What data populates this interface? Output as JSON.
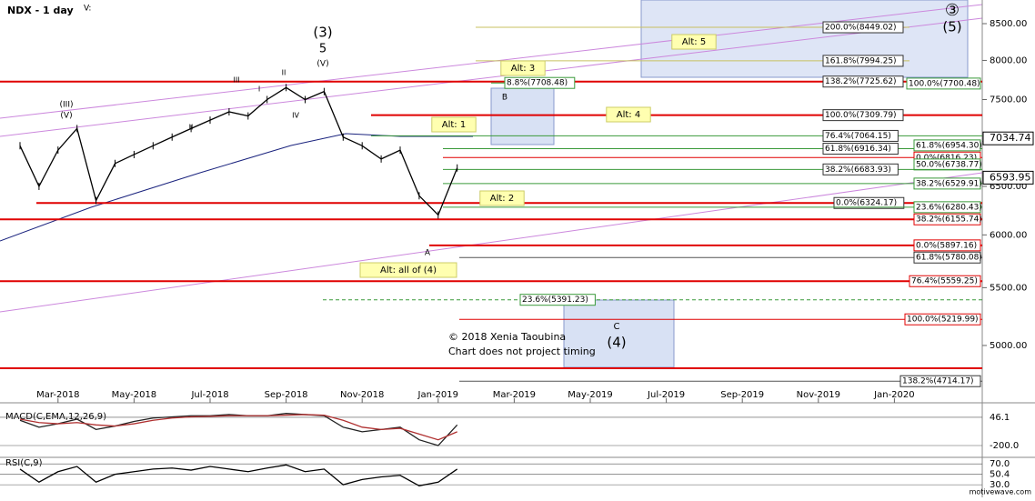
{
  "chart_data": {
    "type": "line",
    "title": "NDX - 1 day",
    "subtitle": "V:",
    "log_scale": true,
    "categories": [
      null,
      null,
      "Mar-2018",
      null,
      null,
      null,
      "May-2018",
      null,
      null,
      null,
      "Jul-2018",
      null,
      null,
      null,
      "Sep-2018",
      null,
      null,
      null,
      "Nov-2018",
      null,
      null,
      null,
      "Jan-2019",
      null,
      null,
      null,
      "Mar-2019",
      null,
      null,
      null,
      "May-2019",
      null,
      null,
      null,
      "Jul-2019",
      null,
      null,
      null,
      "Sep-2019",
      null,
      null,
      null,
      "Nov-2019",
      null,
      null,
      null,
      "Jan-2020",
      null,
      null,
      null
    ],
    "series": [
      {
        "name": "NDX",
        "color": "#000000",
        "values": [
          6950,
          6500,
          6900,
          7150,
          6350,
          6750,
          6850,
          6950,
          7050,
          7150,
          7250,
          7350,
          7300,
          7500,
          7650,
          7500,
          7600,
          7050,
          6950,
          6800,
          6900,
          6400,
          6200,
          6700,
          null,
          null,
          null,
          null,
          null,
          null,
          null,
          null,
          null,
          null,
          null,
          null,
          null,
          null,
          null,
          null,
          null,
          null,
          null,
          null,
          null,
          null,
          null,
          null,
          null,
          null
        ]
      }
    ],
    "ylim": [
      4549,
      8838
    ],
    "yticks": [
      {
        "value": 5000,
        "label": "5000.00"
      },
      {
        "value": 5500,
        "label": "5500.00"
      },
      {
        "value": 6000,
        "label": "6000.00"
      },
      {
        "value": 6500,
        "label": "6500.00"
      },
      {
        "value": 7000,
        "label": "7000.00"
      },
      {
        "value": 7500,
        "label": "7500.00"
      },
      {
        "value": 8000,
        "label": "8000.00"
      },
      {
        "value": 8500,
        "label": "8500.00"
      }
    ],
    "grid": false,
    "price_markers": [
      7034.74,
      6593.95
    ],
    "fib_levels": [
      {
        "value": 8449.02,
        "label": "200.0%(8449.02)"
      },
      {
        "value": 7994.25,
        "label": "161.8%(7994.25)"
      },
      {
        "value": 7725.62,
        "label": "138.2%(7725.62)"
      },
      {
        "value": 7700.48,
        "label": "100.0%(7700.48)"
      },
      {
        "value": 7708.48,
        "label": "8.8%(7708.48)"
      },
      {
        "value": 7309.79,
        "label": "100.0%(7309.79)"
      },
      {
        "value": 7064.15,
        "label": "76.4%(7064.15)"
      },
      {
        "value": 6916.34,
        "label": "61.8%(6916.34)"
      },
      {
        "value": 6954.3,
        "label": "61.8%(6954.30)"
      },
      {
        "value": 6816.23,
        "label": "0.0%(6816.23)"
      },
      {
        "value": 6738.77,
        "label": "50.0%(6738.77)"
      },
      {
        "value": 6683.93,
        "label": "38.2%(6683.93)"
      },
      {
        "value": 6529.91,
        "label": "38.2%(6529.91)"
      },
      {
        "value": 6324.17,
        "label": "0.0%(6324.17)"
      },
      {
        "value": 6280.43,
        "label": "23.6%(6280.43)"
      },
      {
        "value": 6155.74,
        "label": "38.2%(6155.74)"
      },
      {
        "value": 5897.16,
        "label": "0.0%(5897.16)"
      },
      {
        "value": 5780.08,
        "label": "61.8%(5780.08)"
      },
      {
        "value": 5559.25,
        "label": "76.4%(5559.25)"
      },
      {
        "value": 5391.23,
        "label": "23.6%(5391.23)"
      },
      {
        "value": 5219.99,
        "label": "100.0%(5219.99)"
      },
      {
        "value": 4714.17,
        "label": "138.2%(4714.17)"
      }
    ],
    "annotations": [
      "(3)",
      "5",
      "(4)",
      "(5)",
      "③",
      "A",
      "C",
      "Alt: 3",
      "Alt: 5",
      "Alt: 1",
      "Alt: 4",
      "Alt: 2",
      "Alt: all of (4)",
      "© 2018 Xenia Taoubina",
      "Chart does not project timing",
      "(III)",
      "(V)",
      "III",
      "II",
      "IV",
      "(V)",
      "B",
      "I",
      "II"
    ],
    "macd": {
      "title": "MACD(C,EMA,12,26,9)",
      "ylim": [
        -303,
        141
      ],
      "yticks": [
        46.1,
        {
          "value": -200,
          "label": "-200.0"
        }
      ],
      "series": [
        {
          "name": "MACD",
          "color": "#222222",
          "values": [
            20,
            -40,
            -10,
            30,
            -60,
            -30,
            10,
            40,
            50,
            60,
            60,
            70,
            60,
            60,
            80,
            70,
            60,
            -40,
            -80,
            -60,
            -40,
            -150,
            -200,
            -20
          ]
        },
        {
          "name": "Signal",
          "color": "#b03030",
          "values": [
            30,
            0,
            -10,
            0,
            -20,
            -30,
            -10,
            20,
            40,
            50,
            55,
            60,
            60,
            60,
            65,
            70,
            65,
            20,
            -40,
            -60,
            -50,
            -100,
            -150,
            -80
          ]
        }
      ]
    },
    "rsi": {
      "title": "RSI(C,9)",
      "ylim": [
        18,
        79
      ],
      "yticks": [
        {
          "value": 70,
          "label": "70.0"
        },
        50.4,
        {
          "value": 30,
          "label": "30.0"
        }
      ],
      "values": [
        60,
        35,
        55,
        65,
        35,
        50,
        55,
        60,
        62,
        58,
        65,
        60,
        55,
        62,
        68,
        55,
        60,
        30,
        40,
        45,
        48,
        28,
        35,
        60
      ]
    },
    "watermark": "motivewave.com"
  }
}
